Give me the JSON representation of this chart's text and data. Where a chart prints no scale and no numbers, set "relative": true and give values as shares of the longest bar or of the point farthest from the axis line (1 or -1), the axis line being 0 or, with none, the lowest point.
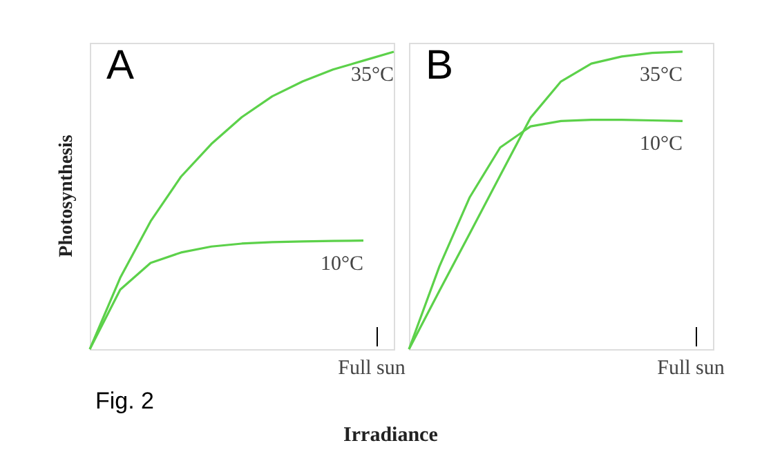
{
  "chart_data": [
    {
      "type": "line",
      "title": "A",
      "ylabel": "Photosynthesis",
      "xlabel": "Irradiance",
      "relative": true,
      "legend": false,
      "categories": [
        null,
        null,
        null,
        null,
        null,
        null,
        null,
        null,
        null,
        null,
        null
      ],
      "series": [
        {
          "name": "35°C",
          "color": "#5cd14a",
          "values": [
            0,
            0.24,
            0.43,
            0.58,
            0.69,
            0.78,
            0.85,
            0.9,
            0.94,
            0.97,
            1.0
          ]
        },
        {
          "name": "10°C",
          "color": "#5cd14a",
          "values": [
            0,
            0.2,
            0.29,
            0.325,
            0.345,
            0.355,
            0.36,
            0.362,
            0.364,
            0.365,
            null
          ]
        }
      ],
      "annotations": [
        "Full sun",
        "Fig. 2"
      ]
    },
    {
      "type": "line",
      "title": "B",
      "relative": true,
      "legend": false,
      "categories": [
        null,
        null,
        null,
        null,
        null,
        null,
        null,
        null,
        null,
        null,
        null
      ],
      "series": [
        {
          "name": "35°C",
          "color": "#5cd14a",
          "values": [
            0,
            0.196,
            0.389,
            0.584,
            0.778,
            0.9,
            0.96,
            0.984,
            0.996,
            1.0,
            null
          ]
        },
        {
          "name": "10°C",
          "color": "#5cd14a",
          "values": [
            0,
            0.278,
            0.511,
            0.678,
            0.749,
            0.767,
            0.771,
            0.771,
            0.769,
            0.767,
            null
          ]
        }
      ],
      "annotations": [
        "Full sun"
      ]
    }
  ]
}
